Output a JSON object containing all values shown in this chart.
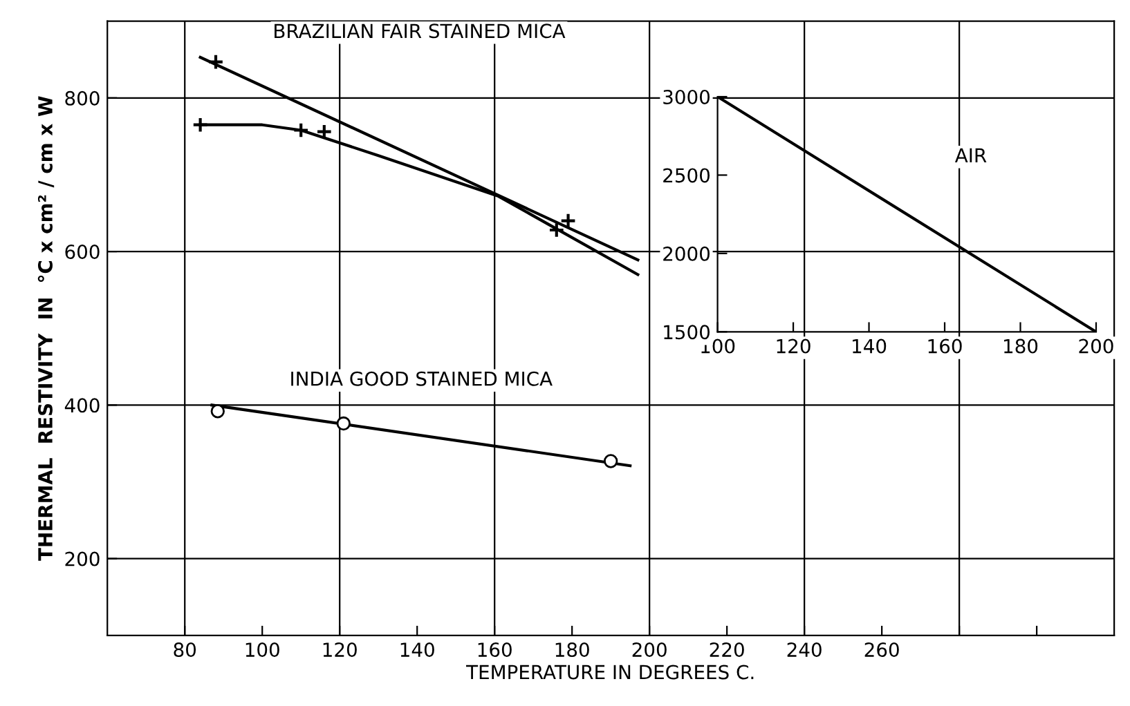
{
  "chart_data": [
    {
      "type": "line",
      "xlabel": "TEMPERATURE IN DEGREES C.",
      "ylabel": "THERMAL  RESTIVITY  IN  °C x cm² / cm x W",
      "xlim": [
        60,
        320
      ],
      "ylim": [
        100,
        900
      ],
      "xticks": [
        80,
        100,
        120,
        140,
        160,
        180,
        200,
        220,
        240,
        260,
        {
          "value": 280,
          "label": null
        },
        {
          "value": 300,
          "label": null
        }
      ],
      "yticks": [
        200,
        400,
        600,
        800
      ],
      "grid": true,
      "legend": false,
      "line_style": "solid",
      "series": [
        {
          "name": "BRAZILIAN FAIR STAINED MICA",
          "color": "#000000",
          "x": [
            84,
            197
          ],
          "values": [
            853,
            589
          ]
        },
        {
          "type": "scatter",
          "marker": "cross",
          "color": "#000000",
          "x": [
            88,
            116,
            179
          ],
          "values": [
            847,
            756,
            640
          ]
        },
        {
          "color": "#000000",
          "x": [
            84,
            100,
            110,
            130,
            161,
            197
          ],
          "values": [
            765,
            765,
            758,
            725,
            672,
            570
          ]
        },
        {
          "type": "scatter",
          "marker": "cross",
          "color": "#000000",
          "x": [
            84,
            110,
            176
          ],
          "values": [
            765,
            758,
            628
          ]
        },
        {
          "name": "INDIA GOOD STAINED MICA",
          "color": "#000000",
          "x": [
            87,
            195
          ],
          "values": [
            400,
            321
          ]
        },
        {
          "type": "scatter",
          "marker": "circle",
          "color": "#000000",
          "x": [
            88.5,
            121,
            190
          ],
          "values": [
            392,
            376,
            327
          ]
        }
      ]
    },
    {
      "type": "line",
      "xlim": [
        100,
        200
      ],
      "ylim": [
        1500,
        3000
      ],
      "xticks": [
        100,
        120,
        140,
        160,
        180,
        200
      ],
      "yticks": [
        1500,
        2000,
        2500,
        3000
      ],
      "grid": false,
      "legend": false,
      "line_style": "solid",
      "series": [
        {
          "name": "AIR",
          "color": "#000000",
          "x": [
            100,
            200
          ],
          "values": [
            3000,
            1500
          ]
        }
      ]
    }
  ]
}
